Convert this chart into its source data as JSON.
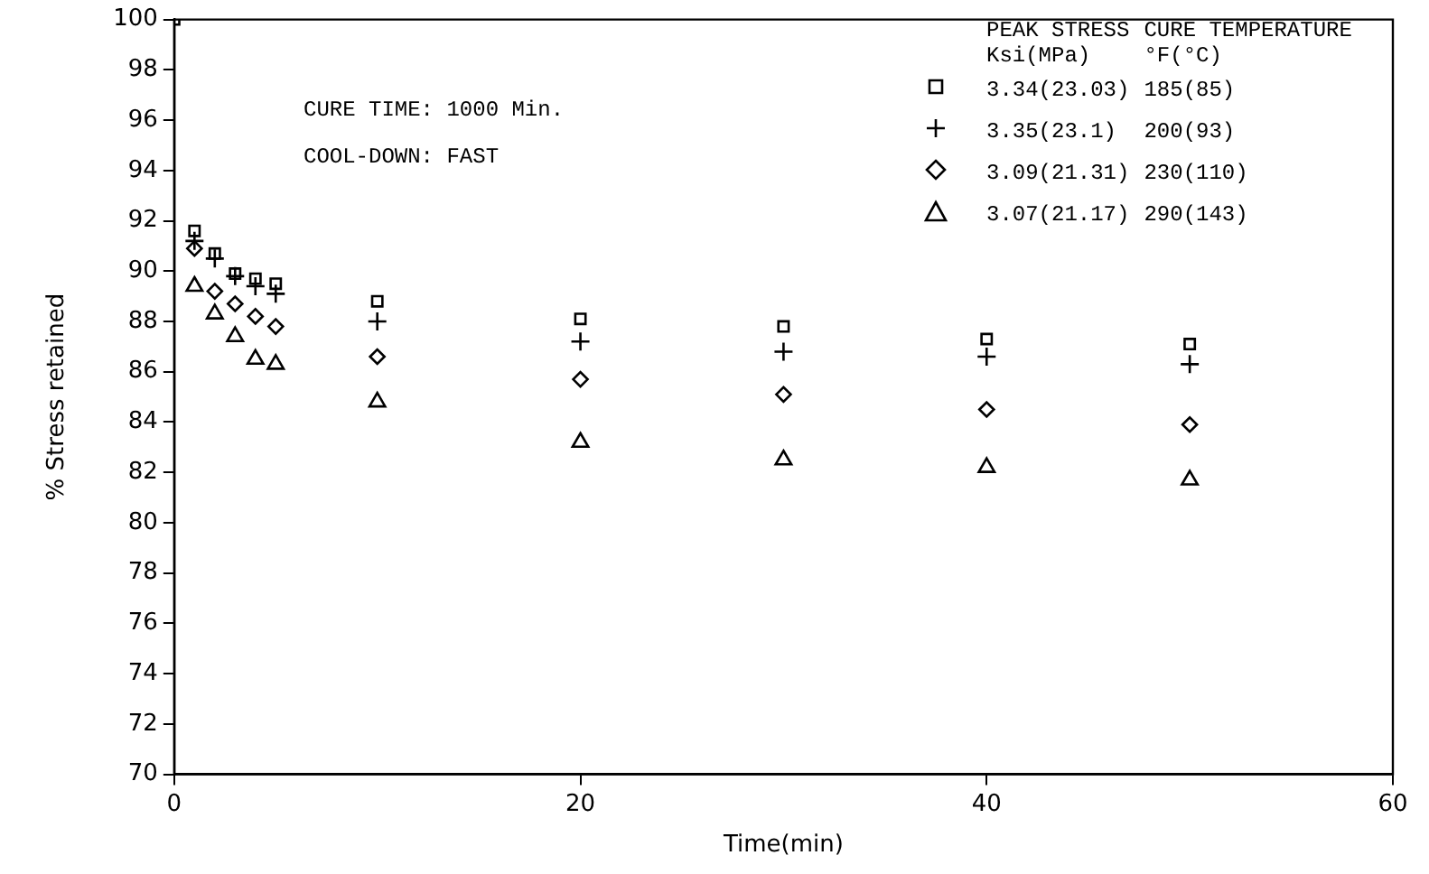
{
  "chart_data": {
    "type": "scatter",
    "xlabel": "Time(min)",
    "ylabel": "% Stress retained",
    "xlim": [
      0,
      60
    ],
    "xticks": [
      0,
      20,
      40,
      60
    ],
    "ylim": [
      70,
      100
    ],
    "yticks": [
      70,
      72,
      74,
      76,
      78,
      80,
      82,
      84,
      86,
      88,
      90,
      92,
      94,
      96,
      98,
      100
    ],
    "grid": false,
    "legend": "top right",
    "legend_title": "PEAK STRESS  CURE TEMPERATURE\nKsi(MPa)  °F(°C)",
    "annotations": [
      "CURE TIME: 1000 Min.",
      "COOL-DOWN: FAST"
    ],
    "x": [
      0,
      1,
      2,
      3,
      4,
      5,
      10,
      20,
      30,
      40,
      50
    ],
    "series": [
      {
        "name": "3.34(23.03)  185(85)",
        "color": "#000000",
        "marker": "square",
        "values": [
          100,
          91.6,
          90.7,
          89.9,
          89.7,
          89.5,
          88.8,
          88.1,
          87.8,
          87.3,
          87.1
        ]
      },
      {
        "name": "3.35(23.1)  200(93)",
        "color": "#000000",
        "marker": "cross",
        "values": [
          null,
          91.2,
          90.5,
          89.8,
          89.4,
          89.1,
          88.0,
          87.2,
          86.8,
          86.6,
          86.3
        ]
      },
      {
        "name": "3.09(21.31)  230(110)",
        "color": "#000000",
        "marker": "diamond",
        "values": [
          null,
          90.9,
          89.2,
          88.7,
          88.2,
          87.8,
          86.6,
          85.7,
          85.1,
          84.5,
          83.9
        ]
      },
      {
        "name": "3.07(21.17)  290(143)",
        "color": "#000000",
        "marker": "triangle",
        "values": [
          null,
          89.4,
          88.3,
          87.4,
          86.5,
          86.3,
          84.8,
          83.2,
          82.5,
          82.2,
          81.7
        ]
      }
    ]
  }
}
